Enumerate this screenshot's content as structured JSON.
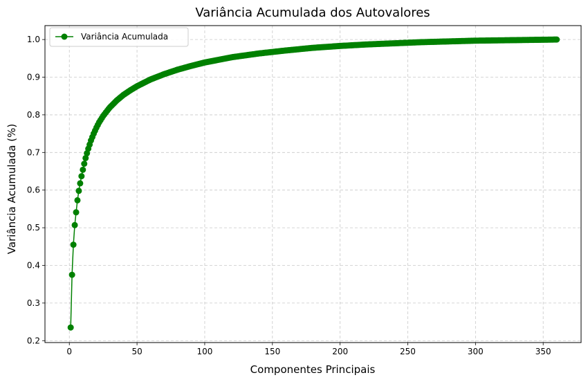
{
  "chart_data": {
    "type": "line",
    "title": "Variância Acumulada dos Autovalores",
    "xlabel": "Componentes Principais",
    "ylabel": "Variância Acumulada (%)",
    "xlim": [
      -18,
      378
    ],
    "ylim": [
      0.195,
      1.037
    ],
    "xticks": [
      0,
      50,
      100,
      150,
      200,
      250,
      300,
      350
    ],
    "yticks": [
      0.2,
      0.3,
      0.4,
      0.5,
      0.6,
      0.7,
      0.8,
      0.9,
      1.0
    ],
    "grid": true,
    "legend_position": "top-left",
    "colors": {
      "series": "#008000"
    },
    "series": [
      {
        "name": "Variância Acumulada",
        "marker": "circle",
        "n_points": 360,
        "anchor_points": [
          [
            1,
            0.235
          ],
          [
            2,
            0.375
          ],
          [
            3,
            0.455
          ],
          [
            4,
            0.507
          ],
          [
            5,
            0.541
          ],
          [
            6,
            0.573
          ],
          [
            7,
            0.598
          ],
          [
            8,
            0.618
          ],
          [
            9,
            0.637
          ],
          [
            10,
            0.654
          ],
          [
            11,
            0.67
          ],
          [
            12,
            0.685
          ],
          [
            13,
            0.698
          ],
          [
            14,
            0.71
          ],
          [
            15,
            0.721
          ],
          [
            16,
            0.732
          ],
          [
            18,
            0.75
          ],
          [
            20,
            0.766
          ],
          [
            22,
            0.78
          ],
          [
            25,
            0.797
          ],
          [
            28,
            0.811
          ],
          [
            30,
            0.82
          ],
          [
            35,
            0.838
          ],
          [
            40,
            0.853
          ],
          [
            45,
            0.865
          ],
          [
            50,
            0.876
          ],
          [
            60,
            0.894
          ],
          [
            70,
            0.908
          ],
          [
            80,
            0.92
          ],
          [
            90,
            0.93
          ],
          [
            100,
            0.939
          ],
          [
            120,
            0.953
          ],
          [
            140,
            0.963
          ],
          [
            160,
            0.971
          ],
          [
            180,
            0.978
          ],
          [
            200,
            0.983
          ],
          [
            220,
            0.987
          ],
          [
            240,
            0.99
          ],
          [
            260,
            0.993
          ],
          [
            280,
            0.995
          ],
          [
            300,
            0.997
          ],
          [
            320,
            0.998
          ],
          [
            340,
            0.999
          ],
          [
            360,
            1.0
          ]
        ]
      }
    ]
  }
}
